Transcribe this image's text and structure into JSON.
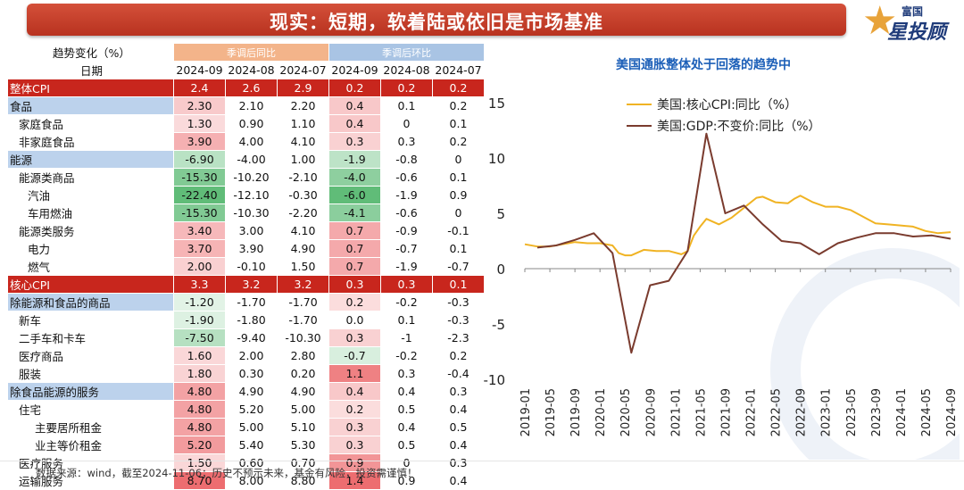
{
  "banner": {
    "title": "现实：短期，软着陆或依旧是市场基准"
  },
  "logo": {
    "top": "富国",
    "bottom": "星投顾"
  },
  "table": {
    "header_label": "趋势变化（%）",
    "date_label": "日期",
    "group_yoy": "季调后同比",
    "group_mom": "季调后环比",
    "dates": [
      "2024-09",
      "2024-08",
      "2024-07",
      "2024-09",
      "2024-08",
      "2024-07"
    ],
    "rows": [
      {
        "name": "整体CPI",
        "level": 0,
        "style": "main",
        "yoy": [
          "2.4",
          "2.6",
          "2.9"
        ],
        "mom": [
          "0.2",
          "0.2",
          "0.2"
        ]
      },
      {
        "name": "食品",
        "level": 0,
        "style": "blue",
        "yoy": [
          "2.30",
          "2.10",
          "2.20"
        ],
        "mom": [
          "0.4",
          "0.1",
          "0.2"
        ]
      },
      {
        "name": "家庭食品",
        "level": 1,
        "style": "",
        "yoy": [
          "1.30",
          "0.90",
          "1.10"
        ],
        "mom": [
          "0.4",
          "0",
          "0.1"
        ]
      },
      {
        "name": "非家庭食品",
        "level": 1,
        "style": "",
        "yoy": [
          "3.90",
          "4.00",
          "4.10"
        ],
        "mom": [
          "0.3",
          "0.3",
          "0.2"
        ]
      },
      {
        "name": "能源",
        "level": 0,
        "style": "blue",
        "yoy": [
          "-6.90",
          "-4.00",
          "1.00"
        ],
        "mom": [
          "-1.9",
          "-0.8",
          "0"
        ]
      },
      {
        "name": "能源类商品",
        "level": 1,
        "style": "",
        "yoy": [
          "-15.30",
          "-10.20",
          "-2.10"
        ],
        "mom": [
          "-4.0",
          "-0.6",
          "0.1"
        ]
      },
      {
        "name": "汽油",
        "level": 2,
        "style": "",
        "yoy": [
          "-22.40",
          "-12.10",
          "-0.30"
        ],
        "mom": [
          "-6.0",
          "-1.9",
          "0.9"
        ]
      },
      {
        "name": "车用燃油",
        "level": 2,
        "style": "",
        "yoy": [
          "-15.30",
          "-10.30",
          "-2.20"
        ],
        "mom": [
          "-4.1",
          "-0.6",
          "0"
        ]
      },
      {
        "name": "能源类服务",
        "level": 1,
        "style": "",
        "yoy": [
          "3.40",
          "3.00",
          "4.10"
        ],
        "mom": [
          "0.7",
          "-0.9",
          "-0.1"
        ]
      },
      {
        "name": "电力",
        "level": 2,
        "style": "",
        "yoy": [
          "3.70",
          "3.90",
          "4.90"
        ],
        "mom": [
          "0.7",
          "-0.7",
          "0.1"
        ]
      },
      {
        "name": "燃气",
        "level": 2,
        "style": "",
        "yoy": [
          "2.00",
          "-0.10",
          "1.50"
        ],
        "mom": [
          "0.7",
          "-1.9",
          "-0.7"
        ]
      },
      {
        "name": "核心CPI",
        "level": 0,
        "style": "main",
        "yoy": [
          "3.3",
          "3.2",
          "3.2"
        ],
        "mom": [
          "0.3",
          "0.3",
          "0.1"
        ]
      },
      {
        "name": "除能源和食品的商品",
        "level": 0,
        "style": "blue",
        "yoy": [
          "-1.20",
          "-1.70",
          "-1.70"
        ],
        "mom": [
          "0.2",
          "-0.2",
          "-0.3"
        ]
      },
      {
        "name": "新车",
        "level": 1,
        "style": "",
        "yoy": [
          "-1.90",
          "-1.80",
          "-1.70"
        ],
        "mom": [
          "0.0",
          "0.1",
          "-0.3"
        ]
      },
      {
        "name": "二手车和卡车",
        "level": 1,
        "style": "",
        "yoy": [
          "-7.50",
          "-9.40",
          "-10.30"
        ],
        "mom": [
          "0.3",
          "-1",
          "-2.3"
        ]
      },
      {
        "name": "医疗商品",
        "level": 1,
        "style": "",
        "yoy": [
          "1.60",
          "2.00",
          "2.80"
        ],
        "mom": [
          "-0.7",
          "-0.2",
          "0.2"
        ]
      },
      {
        "name": "服装",
        "level": 1,
        "style": "",
        "yoy": [
          "1.80",
          "0.30",
          "0.20"
        ],
        "mom": [
          "1.1",
          "0.3",
          "-0.4"
        ]
      },
      {
        "name": "除食品能源的服务",
        "level": 0,
        "style": "blue",
        "yoy": [
          "4.80",
          "4.90",
          "4.90"
        ],
        "mom": [
          "0.4",
          "0.4",
          "0.3"
        ]
      },
      {
        "name": "住宅",
        "level": 1,
        "style": "",
        "yoy": [
          "4.80",
          "5.20",
          "5.00"
        ],
        "mom": [
          "0.2",
          "0.5",
          "0.4"
        ]
      },
      {
        "name": "主要居所租金",
        "level": 3,
        "style": "",
        "yoy": [
          "4.80",
          "5.00",
          "5.10"
        ],
        "mom": [
          "0.3",
          "0.4",
          "0.5"
        ]
      },
      {
        "name": "业主等价租金",
        "level": 3,
        "style": "",
        "yoy": [
          "5.20",
          "5.40",
          "5.30"
        ],
        "mom": [
          "0.3",
          "0.5",
          "0.4"
        ]
      },
      {
        "name": "医疗服务",
        "level": 1,
        "style": "",
        "yoy": [
          "1.50",
          "0.60",
          "0.70"
        ],
        "mom": [
          "0.9",
          "0",
          "0.3"
        ]
      },
      {
        "name": "运输服务",
        "level": 1,
        "style": "",
        "yoy": [
          "8.70",
          "8.00",
          "8.80"
        ],
        "mom": [
          "1.4",
          "0.9",
          "0.4"
        ]
      }
    ]
  },
  "chart_data": {
    "type": "line",
    "title": "美国通胀整体处于回落的趋势中",
    "ylim": [
      -10,
      15
    ],
    "yticks": [
      -10,
      -5,
      0,
      5,
      10,
      15
    ],
    "xticks": [
      "2019-01",
      "2019-05",
      "2019-09",
      "2020-01",
      "2020-05",
      "2020-09",
      "2021-01",
      "2021-05",
      "2021-09",
      "2022-01",
      "2022-05",
      "2022-09",
      "2023-01",
      "2023-05",
      "2023-09",
      "2024-01",
      "2024-05",
      "2024-09"
    ],
    "legend_position": "top-left",
    "series": [
      {
        "name": "美国:核心CPI:同比（%）",
        "color": "#f0b323",
        "x": [
          "2019-01",
          "2019-03",
          "2019-05",
          "2019-07",
          "2019-09",
          "2019-11",
          "2020-01",
          "2020-03",
          "2020-04",
          "2020-05",
          "2020-06",
          "2020-08",
          "2020-10",
          "2020-12",
          "2021-02",
          "2021-03",
          "2021-04",
          "2021-05",
          "2021-06",
          "2021-08",
          "2021-10",
          "2021-12",
          "2022-02",
          "2022-03",
          "2022-05",
          "2022-07",
          "2022-08",
          "2022-09",
          "2022-11",
          "2023-01",
          "2023-03",
          "2023-05",
          "2023-07",
          "2023-09",
          "2023-11",
          "2024-01",
          "2024-03",
          "2024-05",
          "2024-07",
          "2024-09"
        ],
        "y": [
          2.2,
          2.0,
          2.0,
          2.2,
          2.4,
          2.3,
          2.3,
          2.1,
          1.4,
          1.2,
          1.2,
          1.7,
          1.6,
          1.6,
          1.3,
          1.6,
          3.0,
          3.8,
          4.5,
          4.0,
          4.6,
          5.5,
          6.4,
          6.5,
          6.0,
          5.9,
          6.3,
          6.6,
          6.0,
          5.6,
          5.6,
          5.3,
          4.7,
          4.1,
          4.0,
          3.9,
          3.8,
          3.4,
          3.2,
          3.3
        ]
      },
      {
        "name": "美国:GDP:不变价:同比（%）",
        "color": "#7a3b2e",
        "x": [
          "2019-03",
          "2019-06",
          "2019-09",
          "2019-12",
          "2020-03",
          "2020-06",
          "2020-09",
          "2020-12",
          "2021-03",
          "2021-06",
          "2021-09",
          "2021-12",
          "2022-03",
          "2022-06",
          "2022-09",
          "2022-12",
          "2023-03",
          "2023-06",
          "2023-09",
          "2023-12",
          "2024-03",
          "2024-06",
          "2024-09"
        ],
        "y": [
          1.9,
          2.1,
          2.6,
          3.2,
          1.4,
          -7.6,
          -1.5,
          -1.1,
          1.6,
          12.2,
          5.0,
          5.7,
          4.0,
          2.5,
          2.3,
          1.3,
          2.3,
          2.8,
          3.2,
          3.2,
          2.9,
          3.0,
          2.7
        ]
      }
    ]
  },
  "footer": {
    "text": "数据来源：wind，截至2024-11-06；历史不预示未来，基金有风险，投资需谨慎！"
  }
}
